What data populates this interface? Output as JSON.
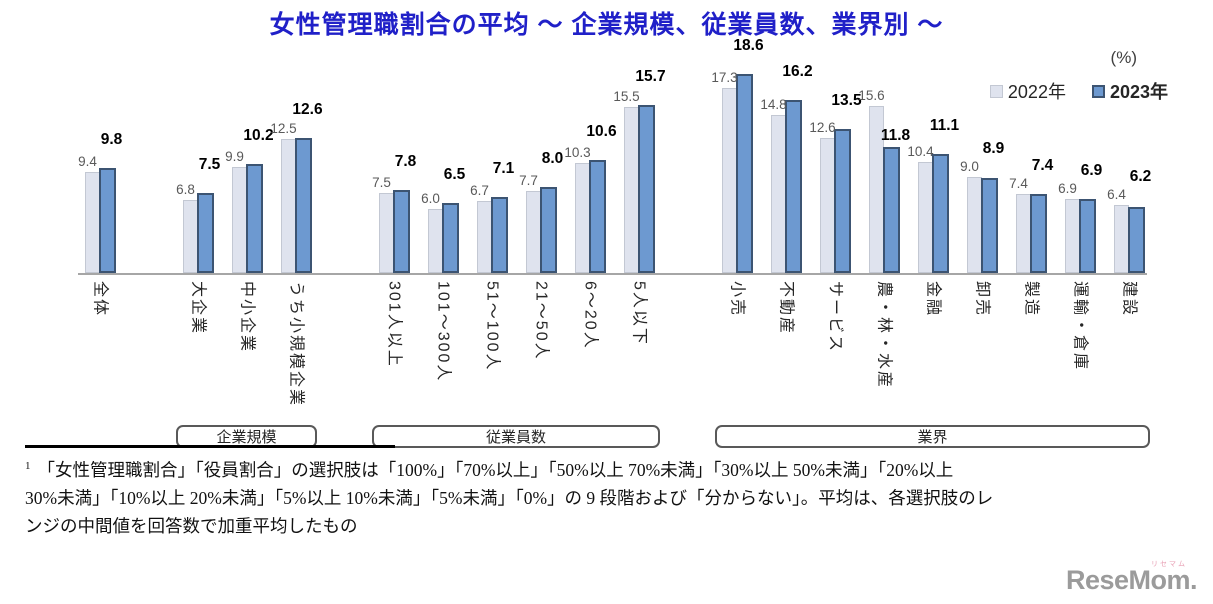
{
  "title": "女性管理職割合の平均 ～ 企業規模、従業員数、業界別 ～",
  "unit_label": "(%)",
  "legend": {
    "year_2022": "2022年",
    "year_2023": "2023年"
  },
  "chart_data": {
    "type": "bar",
    "unit": "%",
    "series_names": [
      "2022年",
      "2023年"
    ],
    "ylim": [
      0,
      20
    ],
    "grid": false,
    "legend_position": "top-right",
    "groups": [
      {
        "id": "overall",
        "box_label": null,
        "categories": [
          "全体"
        ],
        "series": {
          "2022": [
            9.4
          ],
          "2023": [
            9.8
          ]
        }
      },
      {
        "id": "company-size",
        "box_label": "企業規模",
        "categories": [
          "大企業",
          "中小企業",
          "うち小規模企業"
        ],
        "series": {
          "2022": [
            6.8,
            9.9,
            12.5
          ],
          "2023": [
            7.5,
            10.2,
            12.6
          ]
        }
      },
      {
        "id": "employee-count",
        "box_label": "従業員数",
        "categories": [
          "301人以上",
          "101～300人",
          "51～100人",
          "21～50人",
          "6～20人",
          "5人以下"
        ],
        "series": {
          "2022": [
            7.5,
            6.0,
            6.7,
            7.7,
            10.3,
            15.5
          ],
          "2023": [
            7.8,
            6.5,
            7.1,
            8.0,
            10.6,
            15.7
          ]
        }
      },
      {
        "id": "industry",
        "box_label": "業界",
        "categories": [
          "小売",
          "不動産",
          "サービス",
          "農・林・水産",
          "金融",
          "卸売",
          "製造",
          "運輸・倉庫",
          "建設"
        ],
        "series": {
          "2022": [
            17.3,
            14.8,
            12.6,
            15.6,
            10.4,
            9.0,
            7.4,
            6.9,
            6.4
          ],
          "2023": [
            18.6,
            16.2,
            13.5,
            11.8,
            11.1,
            8.9,
            7.4,
            6.9,
            6.2
          ]
        }
      }
    ]
  },
  "footnote": {
    "sup": "1",
    "lines": [
      "「女性管理職割合」「役員割合」の選択肢は「100%」「70%以上」「50%以上 70%未満」「30%以上 50%未満」「20%以上",
      "30%未満」「10%以上 20%未満」「5%以上 10%未満」「5%未満」「0%」の 9 段階および「分からない」。平均は、各選択肢のレ",
      "ンジの中間値を回答数で加重平均したもの"
    ]
  },
  "logo": {
    "text": "ReseMom.",
    "ruby": "リセマム"
  },
  "colors": {
    "title": "#2020c8",
    "bar_2022_fill": "#dfe3ee",
    "bar_2022_border": "#c3c8d3",
    "bar_2023_fill": "#6d99d0",
    "bar_2023_border": "#3c5472",
    "axis": "#a6a6a6",
    "value_2022": "#595959",
    "value_2023": "#000000",
    "group_box_border": "#595959",
    "logo": "#9b9b9b",
    "logo_ruby": "#e8a0b4"
  }
}
